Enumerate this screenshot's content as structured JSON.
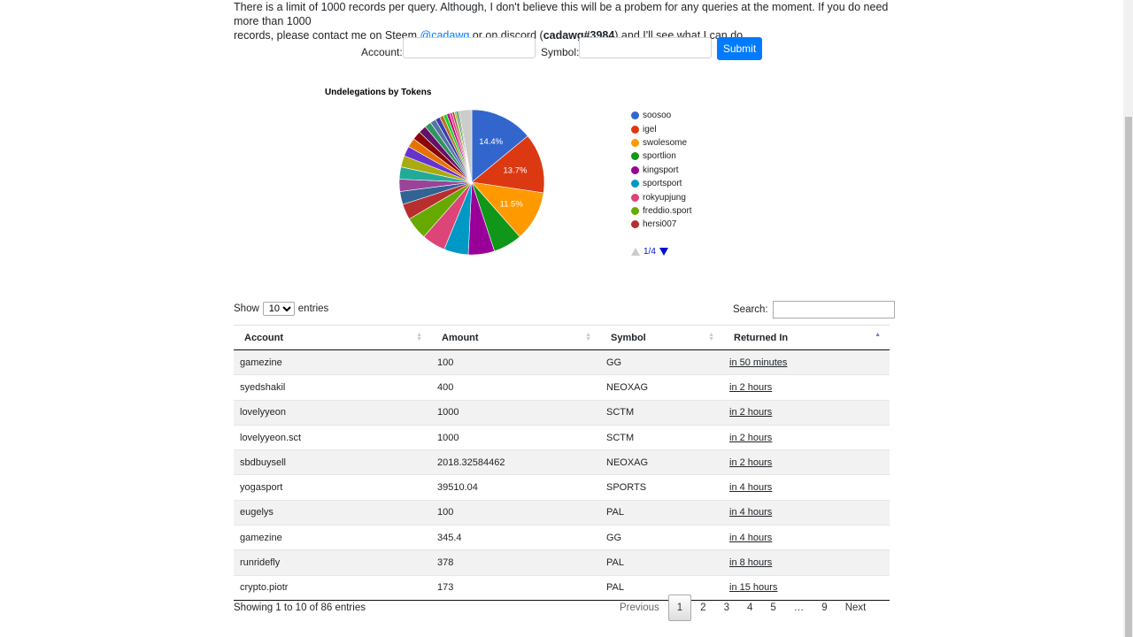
{
  "notice": {
    "line1": "There is a limit of 1000 records per query. Although, I don't believe this will be a probem for any queries at the moment. If you do need more than 1000",
    "line2_a": "records, please contact me on Steem ",
    "steem_link": "@cadawg",
    "line2_b": " or on discord (",
    "discord": "cadawg#3984",
    "line2_c": ") and I'll see what I can do."
  },
  "form": {
    "account_label": "Account:",
    "account_value": "",
    "symbol_label": "Symbol:",
    "symbol_value": "",
    "submit_label": "Submit"
  },
  "chart_data": {
    "type": "pie",
    "title": "Undelegations by Tokens",
    "slices": [
      {
        "name": "soosoo",
        "value": 14.4,
        "color": "#3366cc",
        "label": "14.4%"
      },
      {
        "name": "igel",
        "value": 13.7,
        "color": "#dc3912",
        "label": "13.7%"
      },
      {
        "name": "swolesome",
        "value": 11.5,
        "color": "#ff9900",
        "label": "11.5%"
      },
      {
        "name": "sportlion",
        "value": 6.6,
        "color": "#109618",
        "label": ""
      },
      {
        "name": "kingsport",
        "value": 6.0,
        "color": "#990099",
        "label": ""
      },
      {
        "name": "sportsport",
        "value": 5.6,
        "color": "#0099c6",
        "label": ""
      },
      {
        "name": "rokyupjung",
        "value": 5.4,
        "color": "#dd4477",
        "label": ""
      },
      {
        "name": "freddio.sport",
        "value": 5.2,
        "color": "#66aa00",
        "label": ""
      },
      {
        "name": "hersi007",
        "value": 3.6,
        "color": "#b82e2e",
        "label": ""
      },
      {
        "name": "",
        "value": 3.0,
        "color": "#316395",
        "label": ""
      },
      {
        "name": "",
        "value": 2.8,
        "color": "#994499",
        "label": ""
      },
      {
        "name": "",
        "value": 2.8,
        "color": "#22aa99",
        "label": ""
      },
      {
        "name": "",
        "value": 2.6,
        "color": "#aaaa11",
        "label": ""
      },
      {
        "name": "",
        "value": 2.3,
        "color": "#6633cc",
        "label": ""
      },
      {
        "name": "",
        "value": 2.1,
        "color": "#e67300",
        "label": ""
      },
      {
        "name": "",
        "value": 2.0,
        "color": "#8b0707",
        "label": ""
      },
      {
        "name": "",
        "value": 1.8,
        "color": "#651067",
        "label": ""
      },
      {
        "name": "",
        "value": 1.5,
        "color": "#329262",
        "label": ""
      },
      {
        "name": "",
        "value": 1.3,
        "color": "#5574a6",
        "label": ""
      },
      {
        "name": "",
        "value": 1.1,
        "color": "#3b3eac",
        "label": ""
      },
      {
        "name": "",
        "value": 0.9,
        "color": "#b77322",
        "label": ""
      },
      {
        "name": "",
        "value": 0.8,
        "color": "#16d620",
        "label": ""
      },
      {
        "name": "",
        "value": 0.7,
        "color": "#b91383",
        "label": ""
      },
      {
        "name": "",
        "value": 0.6,
        "color": "#f4359e",
        "label": ""
      },
      {
        "name": "",
        "value": 0.5,
        "color": "#9c5935",
        "label": ""
      },
      {
        "name": "",
        "value": 0.4,
        "color": "#a9c413",
        "label": ""
      },
      {
        "name": "",
        "value": 0.4,
        "color": "#2a778d",
        "label": ""
      },
      {
        "name": "",
        "value": 0.3,
        "color": "#668d1c",
        "label": ""
      },
      {
        "name": "",
        "value": 2.9,
        "color": "#cccccc",
        "label": ""
      }
    ],
    "legend": {
      "placement": "right",
      "page": "1/4"
    }
  },
  "table": {
    "show_label": "Show",
    "show_value": "10",
    "entries_label": "entries",
    "search_label": "Search:",
    "search_value": "",
    "columns": [
      "Account",
      "Amount",
      "Symbol",
      "Returned In"
    ],
    "rows": [
      [
        "gamezine",
        "100",
        "GG",
        "in 50 minutes"
      ],
      [
        "syedshakil",
        "400",
        "NEOXAG",
        "in 2 hours"
      ],
      [
        "lovelyyeon",
        "1000",
        "SCTM",
        "in 2 hours"
      ],
      [
        "lovelyyeon.sct",
        "1000",
        "SCTM",
        "in 2 hours"
      ],
      [
        "sbdbuysell",
        "2018.32584462",
        "NEOXAG",
        "in 2 hours"
      ],
      [
        "yogasport",
        "39510.04",
        "SPORTS",
        "in 4 hours"
      ],
      [
        "eugelys",
        "100",
        "PAL",
        "in 4 hours"
      ],
      [
        "gamezine",
        "345.4",
        "GG",
        "in 4 hours"
      ],
      [
        "runridefly",
        "378",
        "PAL",
        "in 8 hours"
      ],
      [
        "crypto.piotr",
        "173",
        "PAL",
        "in 15 hours"
      ]
    ],
    "info": "Showing 1 to 10 of 86 entries",
    "pager": {
      "previous": "Previous",
      "pages": [
        "1",
        "2",
        "3",
        "4",
        "5",
        "…",
        "9"
      ],
      "next": "Next",
      "current": "1"
    }
  }
}
